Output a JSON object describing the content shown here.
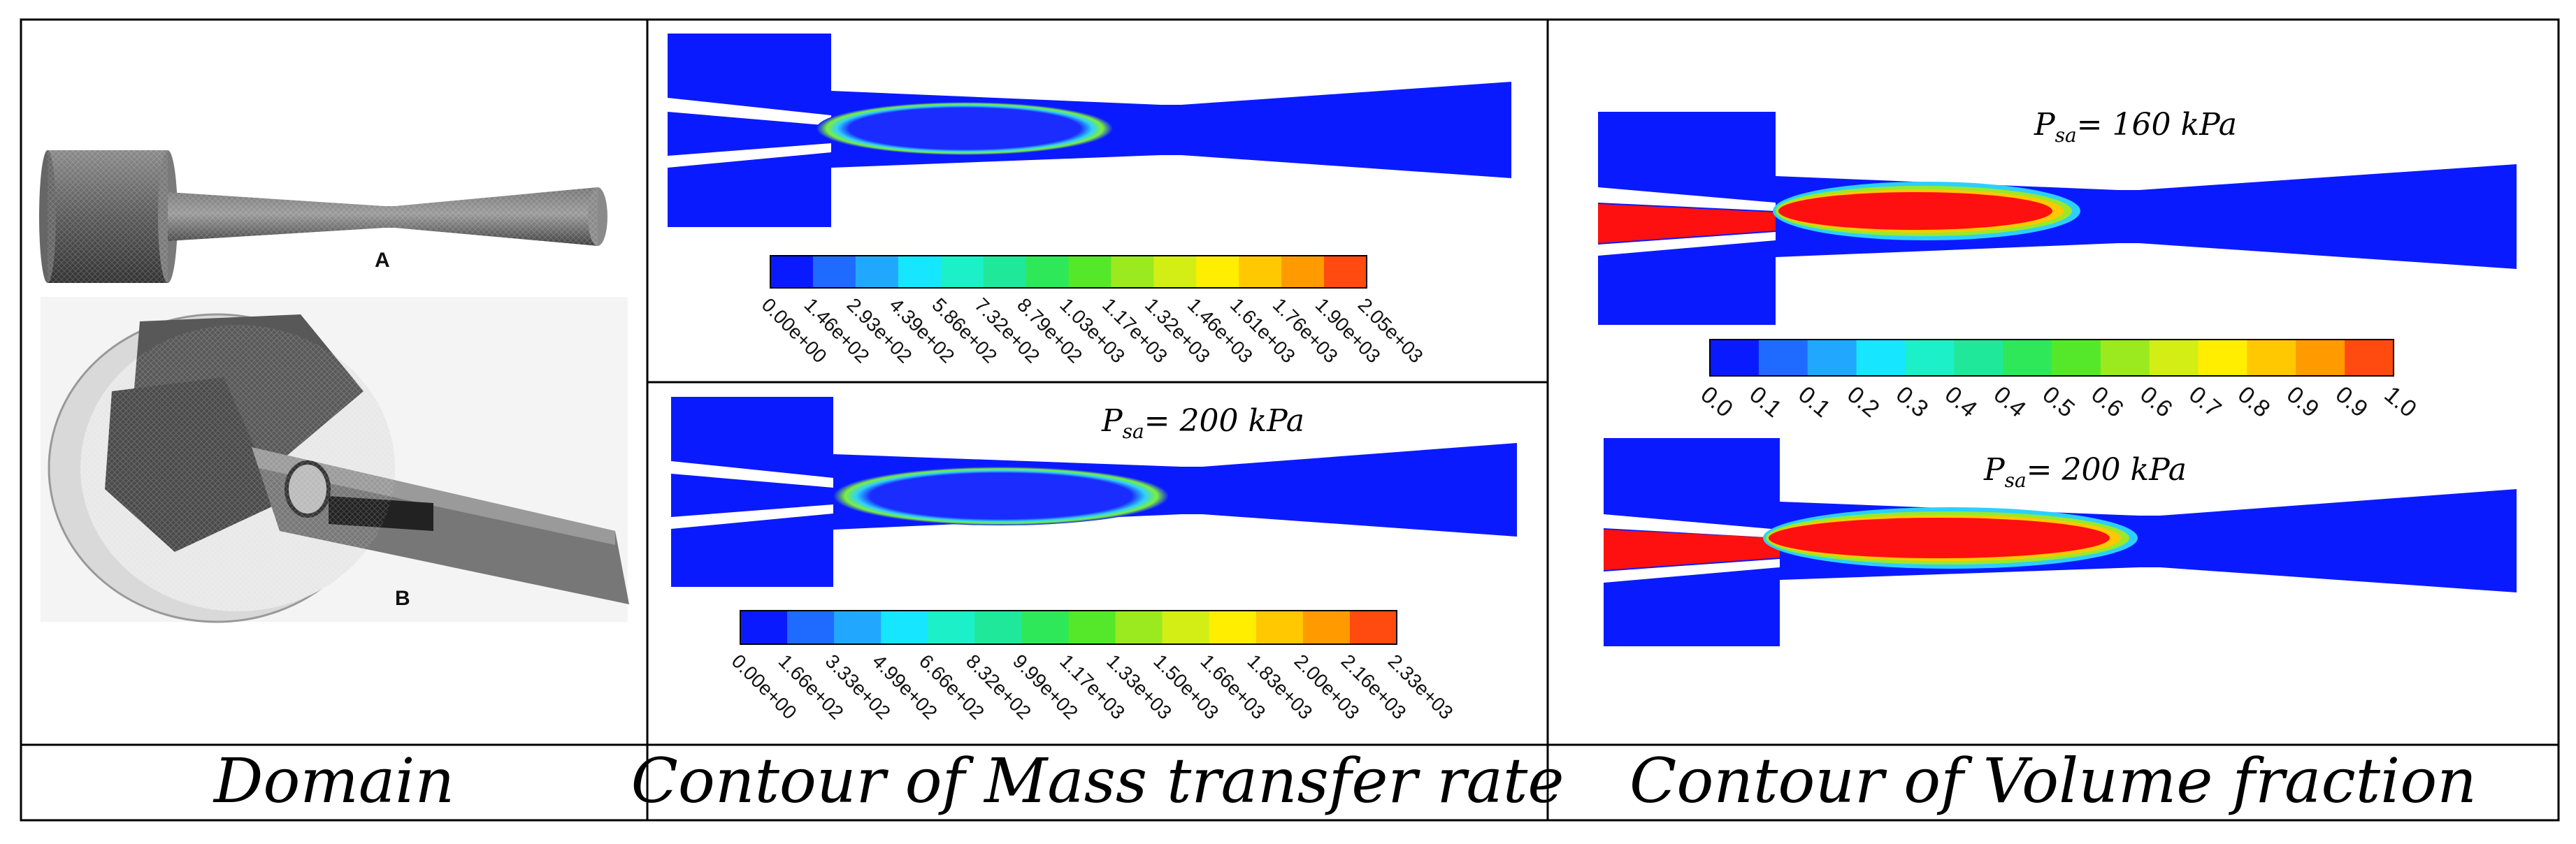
{
  "captions": {
    "domain": "Domain",
    "mass_transfer": "Contour of Mass transfer rate",
    "volume_fraction": "Contour of Volume fraction"
  },
  "domain_panel": {
    "label_a": "A",
    "label_b": "B"
  },
  "mass_transfer_panel": {
    "upper_colorbar": [
      "0.00e+00",
      "1.46e+02",
      "2.93e+02",
      "4.39e+02",
      "5.86e+02",
      "7.32e+02",
      "8.79e+02",
      "1.03e+03",
      "1.17e+03",
      "1.32e+03",
      "1.46e+03",
      "1.61e+03",
      "1.76e+03",
      "1.90e+03",
      "2.05e+03"
    ],
    "lower_label": {
      "p": "P",
      "sub": "sa",
      "rest": "= 200 kPa"
    },
    "lower_colorbar": [
      "0.00e+00",
      "1.66e+02",
      "3.33e+02",
      "4.99e+02",
      "6.66e+02",
      "8.32e+02",
      "9.99e+02",
      "1.17e+03",
      "1.33e+03",
      "1.50e+03",
      "1.66e+03",
      "1.83e+03",
      "2.00e+03",
      "2.16e+03",
      "2.33e+03"
    ]
  },
  "volume_fraction_panel": {
    "upper_label": {
      "p": "P",
      "sub": "sa",
      "rest": "= 160 kPa"
    },
    "lower_label": {
      "p": "P",
      "sub": "sa",
      "rest": "= 200 kPa"
    },
    "colorbar": [
      "0.0",
      "0.1",
      "0.1",
      "0.2",
      "0.3",
      "0.4",
      "0.4",
      "0.5",
      "0.6",
      "0.6",
      "0.7",
      "0.8",
      "0.9",
      "0.9",
      "1.0"
    ]
  },
  "colormap": [
    "#0a1aff",
    "#1f6bff",
    "#22a7ff",
    "#16e6ff",
    "#1cf0c8",
    "#20e89a",
    "#2ee85a",
    "#55e82a",
    "#9aea1f",
    "#d2ee14",
    "#ffee00",
    "#ffc800",
    "#ff9a00",
    "#ff4a10"
  ]
}
